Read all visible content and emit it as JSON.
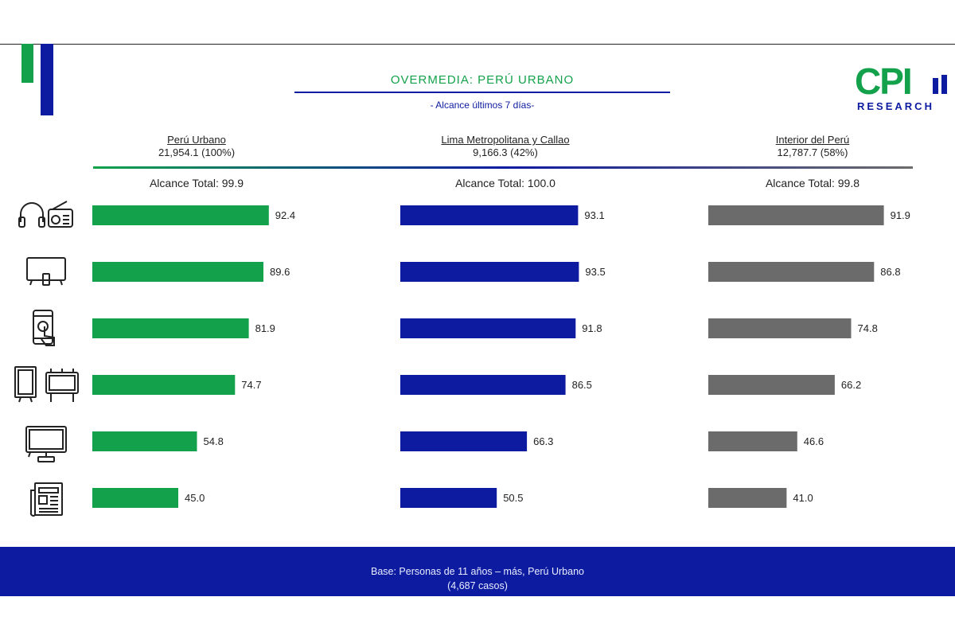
{
  "header": {
    "title": "OVERMEDIA: PERÚ URBANO",
    "subtitle": "- Alcance últimos 7 días-"
  },
  "logo": {
    "main": "CPI",
    "sub": "RESEARCH"
  },
  "colors": {
    "green": "#13a24b",
    "blue": "#0d1ba0",
    "gray": "#6b6b6b"
  },
  "chart_data": {
    "type": "bar",
    "orientation": "horizontal",
    "categories": [
      "radio-icon",
      "tv-icon",
      "smartphone-icon",
      "outdoor-billboard-icon",
      "cable-tv-icon",
      "newspaper-icon"
    ],
    "xlim": [
      0,
      100
    ],
    "series": [
      {
        "name": "Perú Urbano",
        "population": "21,954.1 (100%)",
        "total": "Alcance Total: 99.9",
        "color": "#13a24b",
        "values": [
          92.4,
          89.6,
          81.9,
          74.7,
          54.8,
          45.0
        ]
      },
      {
        "name": "Lima Metropolitana y Callao",
        "population": "9,166.3 (42%)",
        "total": "Alcance Total: 100.0",
        "color": "#0d1ba0",
        "values": [
          93.1,
          93.5,
          91.8,
          86.5,
          66.3,
          50.5
        ]
      },
      {
        "name": "Interior del Perú",
        "population": "12,787.7 (58%)",
        "total": "Alcance Total: 99.8",
        "color": "#6b6b6b",
        "values": [
          91.9,
          86.8,
          74.8,
          66.2,
          46.6,
          41.0
        ]
      }
    ]
  },
  "footer": {
    "line1": "Base: Personas de 11 años – más, Perú Urbano",
    "line2": "(4,687 casos)"
  }
}
